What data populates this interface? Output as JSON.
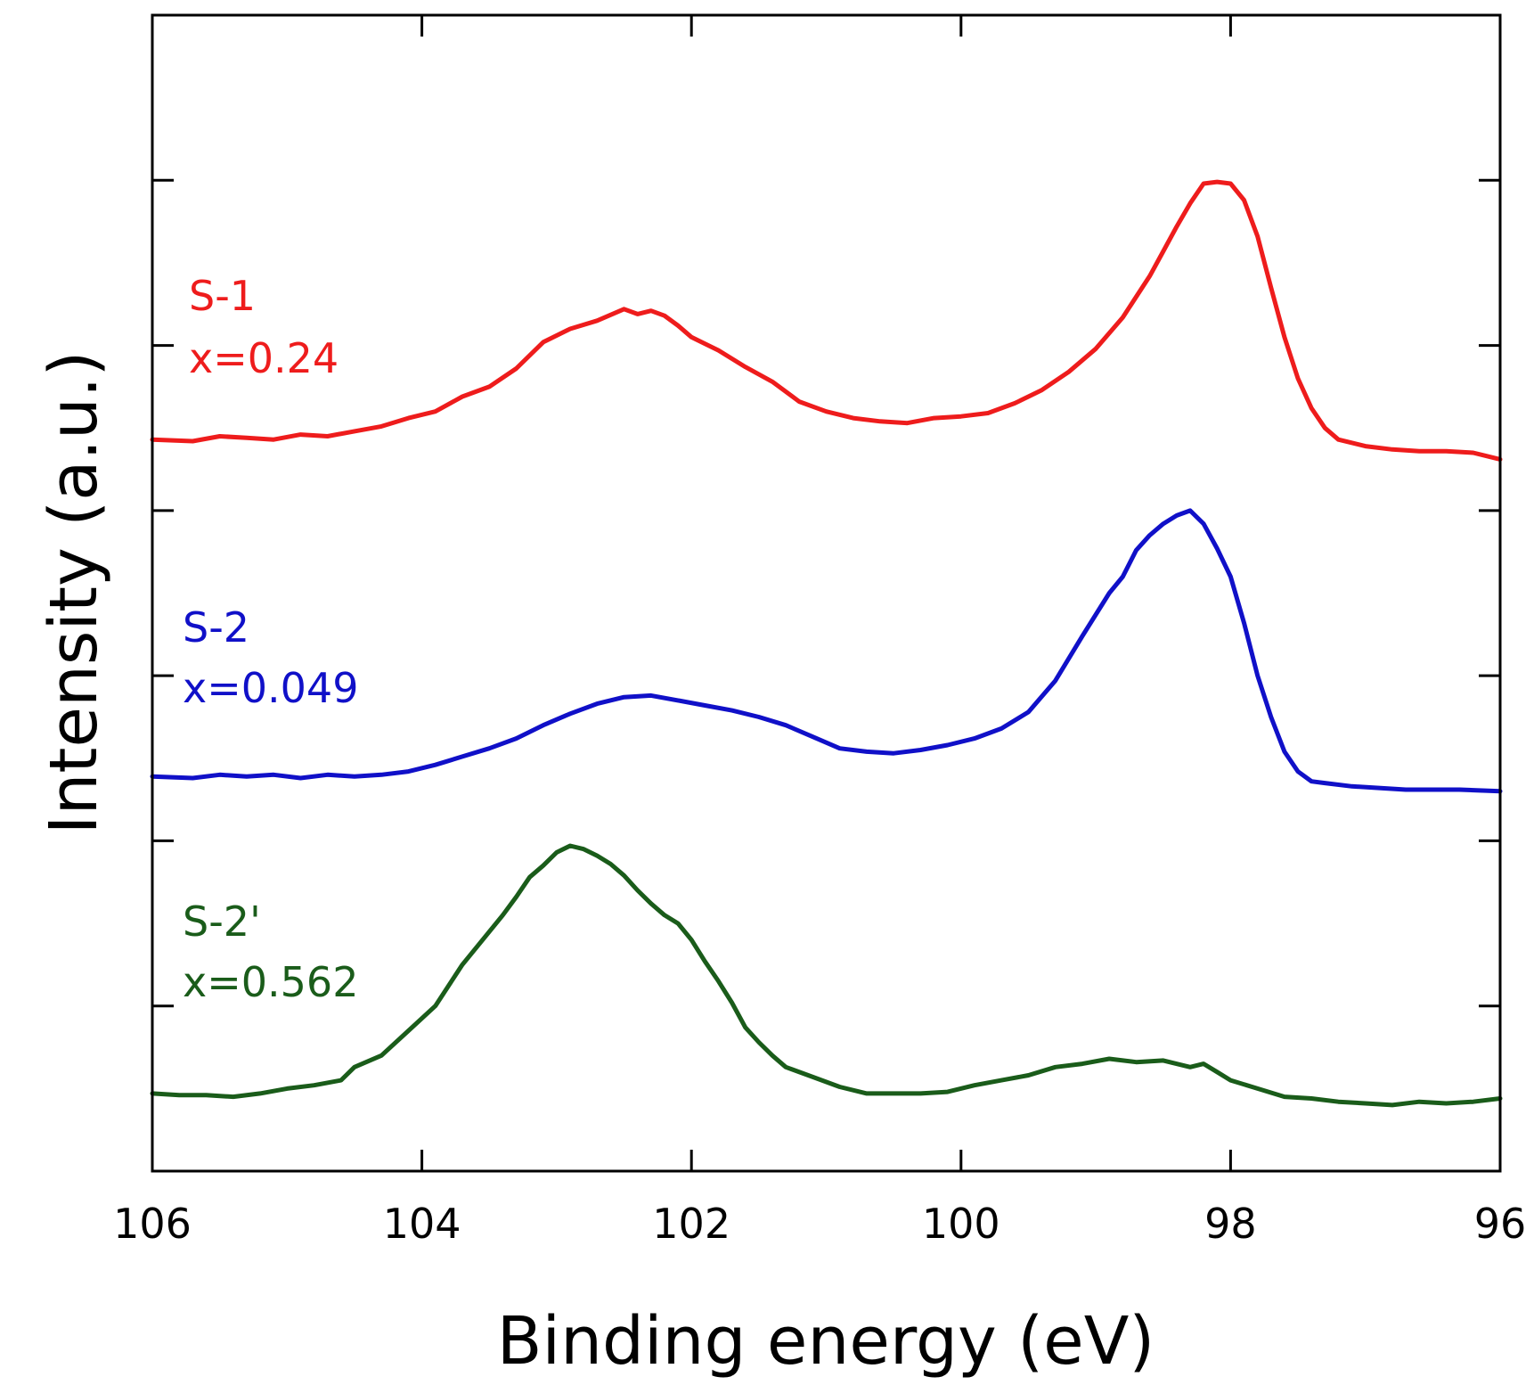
{
  "chart_data": {
    "type": "line",
    "title": "",
    "xlabel": "Binding energy (eV)",
    "ylabel": "Intensity (a.u.)",
    "xlim": [
      106,
      96
    ],
    "x_reversed": true,
    "ylim": [
      0,
      7
    ],
    "y_tick_labels_shown": false,
    "grid": false,
    "legend": "none",
    "x_ticks": [
      "106",
      "104",
      "102",
      "100",
      "98",
      "96"
    ],
    "x_tick_values": [
      106,
      104,
      102,
      100,
      98,
      96
    ],
    "y_tick_values": [
      1,
      2,
      3,
      4,
      5,
      6
    ],
    "series": [
      {
        "name": "S-1",
        "annotation": "x=0.24",
        "color": "#ee1c1c",
        "x": [
          106.0,
          105.7,
          105.5,
          105.3,
          105.1,
          104.9,
          104.7,
          104.5,
          104.3,
          104.1,
          103.9,
          103.7,
          103.5,
          103.3,
          103.1,
          102.9,
          102.7,
          102.5,
          102.4,
          102.3,
          102.2,
          102.1,
          102.0,
          101.8,
          101.6,
          101.4,
          101.2,
          101.0,
          100.8,
          100.6,
          100.4,
          100.2,
          100.0,
          99.8,
          99.6,
          99.4,
          99.2,
          99.0,
          98.8,
          98.6,
          98.5,
          98.4,
          98.3,
          98.2,
          98.1,
          98.0,
          97.9,
          97.8,
          97.7,
          97.6,
          97.5,
          97.4,
          97.3,
          97.2,
          97.0,
          96.8,
          96.6,
          96.4,
          96.2,
          96.0
        ],
        "y": [
          4.43,
          4.42,
          4.45,
          4.44,
          4.43,
          4.46,
          4.45,
          4.48,
          4.51,
          4.56,
          4.6,
          4.69,
          4.75,
          4.86,
          5.02,
          5.1,
          5.15,
          5.22,
          5.19,
          5.21,
          5.18,
          5.12,
          5.05,
          4.97,
          4.87,
          4.78,
          4.66,
          4.6,
          4.56,
          4.54,
          4.53,
          4.56,
          4.57,
          4.59,
          4.65,
          4.73,
          4.84,
          4.98,
          5.17,
          5.42,
          5.57,
          5.72,
          5.86,
          5.98,
          5.99,
          5.98,
          5.88,
          5.66,
          5.35,
          5.05,
          4.8,
          4.62,
          4.5,
          4.43,
          4.39,
          4.37,
          4.36,
          4.36,
          4.35,
          4.31
        ]
      },
      {
        "name": "S-2",
        "annotation": "x=0.049",
        "color": "#1010c8",
        "x": [
          106.0,
          105.7,
          105.5,
          105.3,
          105.1,
          104.9,
          104.7,
          104.5,
          104.3,
          104.1,
          103.9,
          103.7,
          103.5,
          103.3,
          103.1,
          102.9,
          102.7,
          102.5,
          102.3,
          102.1,
          101.9,
          101.7,
          101.5,
          101.3,
          101.1,
          100.9,
          100.7,
          100.5,
          100.3,
          100.1,
          99.9,
          99.7,
          99.5,
          99.3,
          99.1,
          98.9,
          98.8,
          98.7,
          98.6,
          98.5,
          98.4,
          98.3,
          98.2,
          98.1,
          98.0,
          97.9,
          97.8,
          97.7,
          97.6,
          97.5,
          97.4,
          97.3,
          97.1,
          96.9,
          96.7,
          96.5,
          96.3,
          96.0
        ],
        "y": [
          2.39,
          2.38,
          2.4,
          2.39,
          2.4,
          2.38,
          2.4,
          2.39,
          2.4,
          2.42,
          2.46,
          2.51,
          2.56,
          2.62,
          2.7,
          2.77,
          2.83,
          2.87,
          2.88,
          2.85,
          2.82,
          2.79,
          2.75,
          2.7,
          2.63,
          2.56,
          2.54,
          2.53,
          2.55,
          2.58,
          2.62,
          2.68,
          2.78,
          2.97,
          3.24,
          3.5,
          3.6,
          3.76,
          3.85,
          3.92,
          3.97,
          4.0,
          3.92,
          3.77,
          3.6,
          3.32,
          3.0,
          2.75,
          2.54,
          2.42,
          2.36,
          2.35,
          2.33,
          2.32,
          2.31,
          2.31,
          2.31,
          2.3
        ]
      },
      {
        "name": "S-2'",
        "annotation": "x=0.562",
        "color": "#1a5c1a",
        "x": [
          106.0,
          105.8,
          105.6,
          105.4,
          105.2,
          105.0,
          104.8,
          104.6,
          104.5,
          104.3,
          104.1,
          103.9,
          103.7,
          103.5,
          103.4,
          103.3,
          103.2,
          103.1,
          103.0,
          102.9,
          102.8,
          102.7,
          102.6,
          102.5,
          102.4,
          102.3,
          102.2,
          102.1,
          102.0,
          101.9,
          101.8,
          101.7,
          101.6,
          101.5,
          101.4,
          101.3,
          101.1,
          100.9,
          100.7,
          100.5,
          100.3,
          100.1,
          99.9,
          99.7,
          99.5,
          99.3,
          99.1,
          98.9,
          98.7,
          98.5,
          98.3,
          98.2,
          98.1,
          98.0,
          97.8,
          97.6,
          97.4,
          97.2,
          97.0,
          96.8,
          96.6,
          96.4,
          96.2,
          96.0
        ],
        "y": [
          0.47,
          0.46,
          0.46,
          0.45,
          0.47,
          0.5,
          0.52,
          0.55,
          0.63,
          0.7,
          0.85,
          1.0,
          1.25,
          1.45,
          1.55,
          1.66,
          1.78,
          1.85,
          1.93,
          1.97,
          1.95,
          1.91,
          1.86,
          1.79,
          1.7,
          1.62,
          1.55,
          1.5,
          1.4,
          1.27,
          1.15,
          1.02,
          0.87,
          0.78,
          0.7,
          0.63,
          0.57,
          0.51,
          0.47,
          0.47,
          0.47,
          0.48,
          0.52,
          0.55,
          0.58,
          0.63,
          0.65,
          0.68,
          0.66,
          0.67,
          0.63,
          0.65,
          0.6,
          0.55,
          0.5,
          0.45,
          0.44,
          0.42,
          0.41,
          0.4,
          0.42,
          0.41,
          0.42,
          0.44
        ]
      }
    ]
  }
}
